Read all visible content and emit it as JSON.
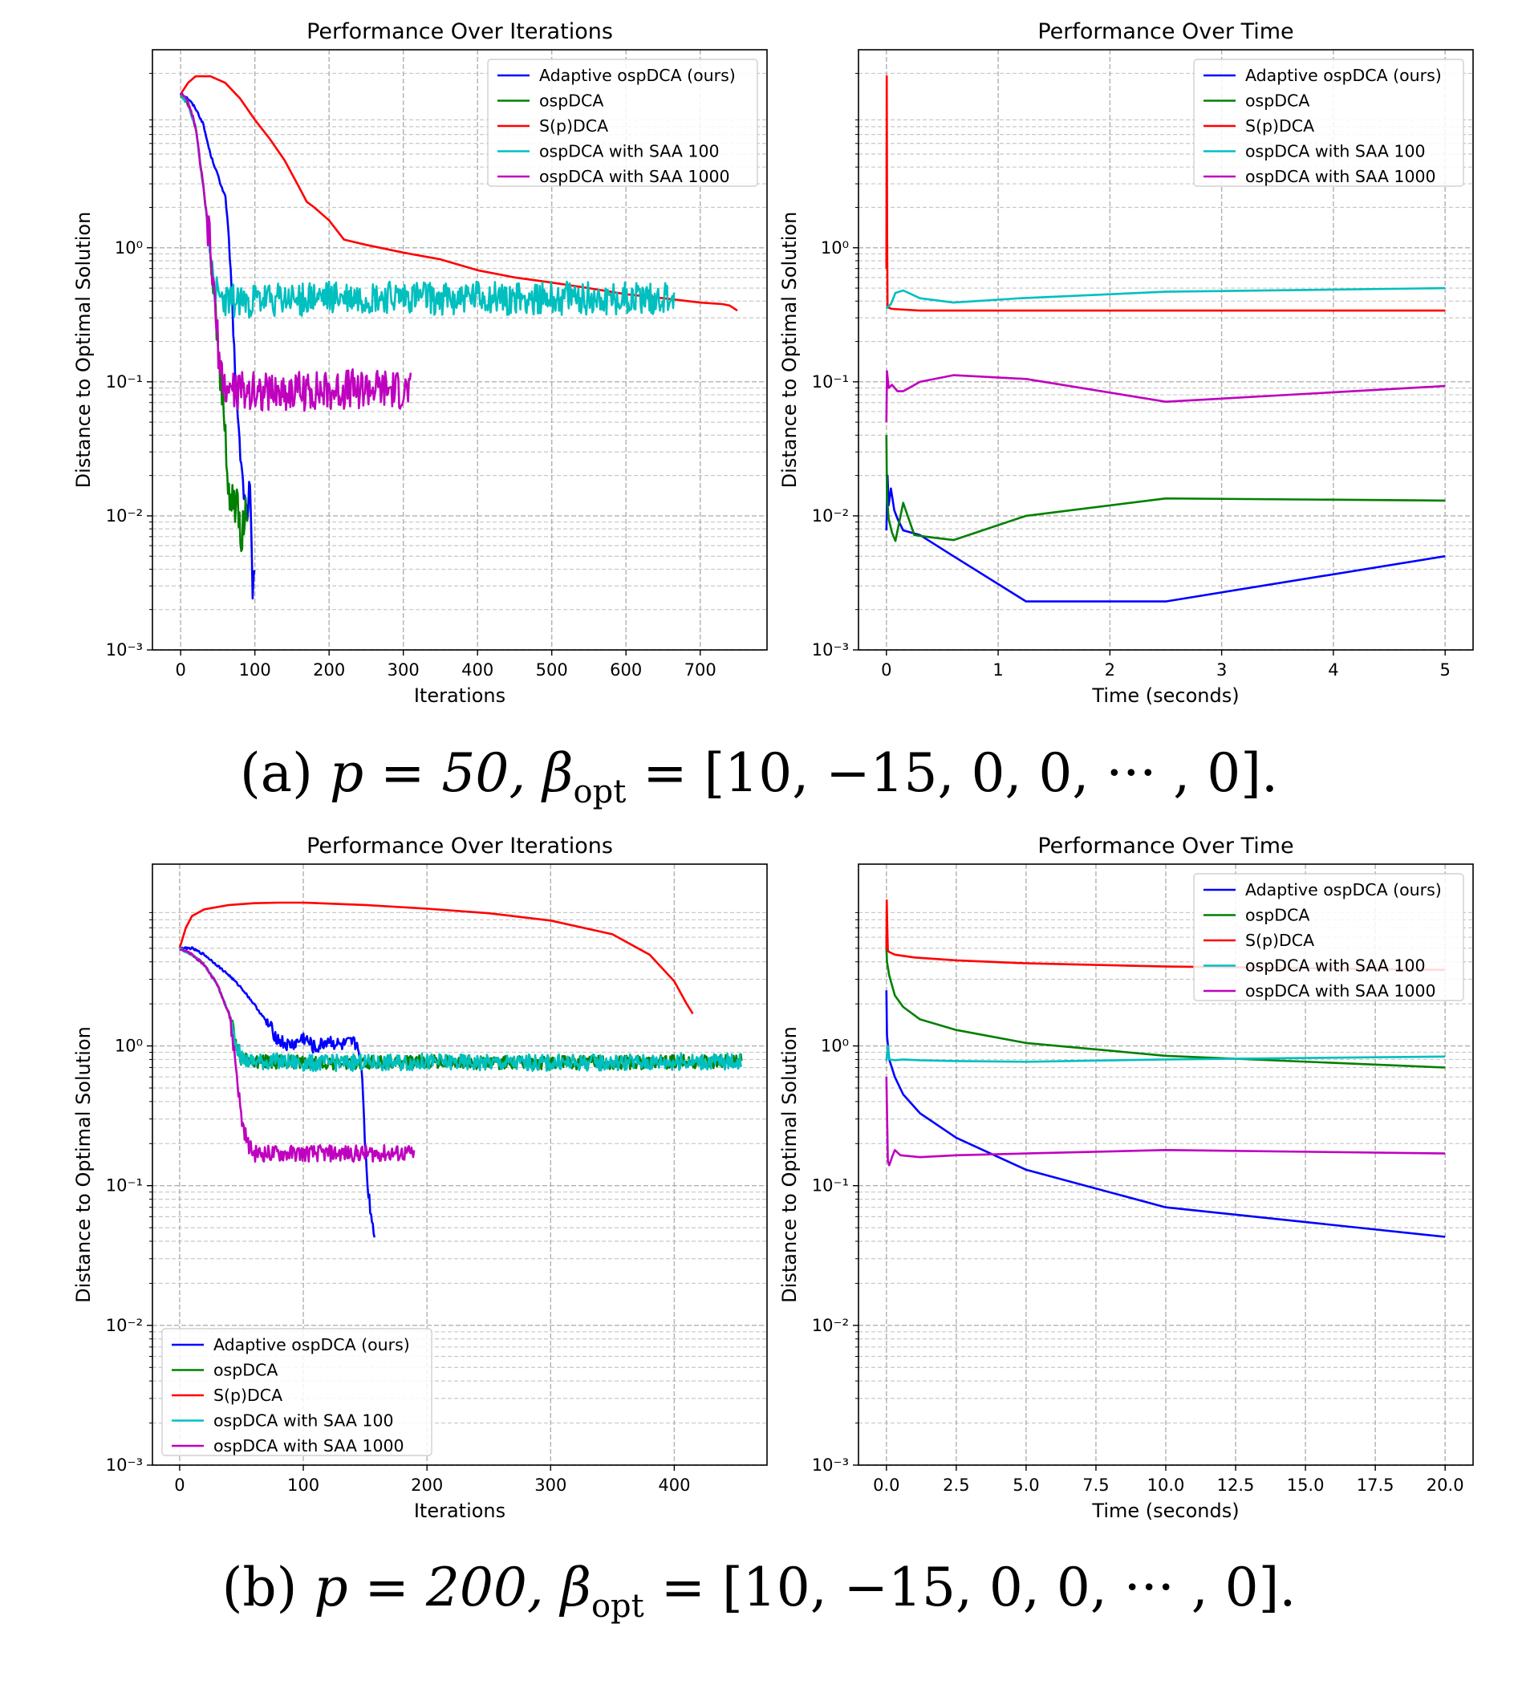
{
  "captions": {
    "a": {
      "label": "(a)",
      "p_eq": "p = 50,",
      "beta": "β",
      "beta_sub": "opt",
      "rest": "= [10, −15, 0, 0, ··· , 0]."
    },
    "b": {
      "label": "(b)",
      "p_eq": "p = 200,",
      "beta": "β",
      "beta_sub": "opt",
      "rest": "= [10, −15, 0, 0, ··· , 0]."
    }
  },
  "series_colors": {
    "Adaptive ospDCA (ours)": "#0000ff",
    "ospDCA": "#008000",
    "S(p)DCA": "#ff0000",
    "ospDCA with SAA 100": "#00bfbf",
    "ospDCA with SAA 1000": "#bf00bf"
  },
  "chart_data": [
    {
      "id": "a_iter",
      "type": "line",
      "title": "Performance Over Iterations",
      "xlabel": "Iterations",
      "ylabel": "Distance to Optimal Solution",
      "yscale": "log",
      "xlim": [
        -38,
        790
      ],
      "ylim": [
        0.001,
        30
      ],
      "xticks": [
        0,
        100,
        200,
        300,
        400,
        500,
        600,
        700
      ],
      "xtick_labels": [
        "0",
        "100",
        "200",
        "300",
        "400",
        "500",
        "600",
        "700"
      ],
      "yticks": [
        0.001,
        0.01,
        0.1,
        1
      ],
      "ytick_labels": [
        "10⁻³",
        "10⁻²",
        "10⁻¹",
        "10⁰"
      ],
      "legend": "top-right",
      "series": [
        {
          "name": "Adaptive ospDCA (ours)",
          "noise": 0.12,
          "x": [
            0,
            10,
            20,
            30,
            40,
            50,
            55,
            60,
            65,
            70,
            75,
            80,
            85,
            90,
            93,
            95,
            97,
            100
          ],
          "y": [
            14,
            13,
            11,
            8.5,
            5,
            3.5,
            2.8,
            2.5,
            1.2,
            0.3,
            0.08,
            0.03,
            0.015,
            0.01,
            0.019,
            0.008,
            0.0023,
            0.005
          ]
        },
        {
          "name": "ospDCA",
          "noise": 0.3,
          "x": [
            0,
            10,
            20,
            30,
            40,
            50,
            55,
            60,
            63,
            67,
            70,
            73,
            76,
            80,
            83,
            86,
            90
          ],
          "y": [
            14,
            12,
            8,
            3,
            1.0,
            0.2,
            0.09,
            0.04,
            0.018,
            0.013,
            0.016,
            0.01,
            0.015,
            0.009,
            0.0065,
            0.012,
            0.01
          ]
        },
        {
          "name": "S(p)DCA",
          "x": [
            0,
            10,
            20,
            40,
            60,
            80,
            100,
            120,
            140,
            160,
            170,
            180,
            200,
            220,
            250,
            300,
            350,
            400,
            450,
            500,
            550,
            600,
            650,
            700,
            730,
            740,
            750
          ],
          "y": [
            14,
            17,
            19,
            19,
            17,
            13,
            9,
            6.5,
            4.5,
            2.8,
            2.2,
            2.0,
            1.6,
            1.15,
            1.05,
            0.92,
            0.82,
            0.68,
            0.6,
            0.55,
            0.5,
            0.45,
            0.42,
            0.39,
            0.38,
            0.37,
            0.34
          ]
        },
        {
          "name": "ospDCA with SAA 100",
          "noise": 0.25,
          "x": [
            0,
            10,
            20,
            30,
            40,
            45,
            50,
            60,
            100,
            200,
            300,
            400,
            500,
            600,
            665
          ],
          "y": [
            14,
            12,
            8,
            3,
            1.0,
            0.55,
            0.42,
            0.4,
            0.4,
            0.42,
            0.42,
            0.42,
            0.42,
            0.42,
            0.42
          ]
        },
        {
          "name": "ospDCA with SAA 1000",
          "noise": 0.3,
          "x": [
            0,
            10,
            20,
            30,
            40,
            50,
            55,
            60,
            100,
            200,
            250,
            310
          ],
          "y": [
            14,
            12,
            8,
            3,
            1.0,
            0.2,
            0.1,
            0.09,
            0.085,
            0.085,
            0.09,
            0.085
          ]
        }
      ]
    },
    {
      "id": "a_time",
      "type": "line",
      "title": "Performance Over Time",
      "xlabel": "Time (seconds)",
      "ylabel": "Distance to Optimal Solution",
      "yscale": "log",
      "xlim": [
        -0.25,
        5.25
      ],
      "ylim": [
        0.001,
        30
      ],
      "xticks": [
        0,
        1,
        2,
        3,
        4,
        5
      ],
      "xtick_labels": [
        "0",
        "1",
        "2",
        "3",
        "4",
        "5"
      ],
      "yticks": [
        0.001,
        0.01,
        0.1,
        1
      ],
      "ytick_labels": [
        "10⁻³",
        "10⁻²",
        "10⁻¹",
        "10⁰"
      ],
      "legend": "top-right",
      "series": [
        {
          "name": "Adaptive ospDCA (ours)",
          "x": [
            0,
            0.01,
            0.02,
            0.04,
            0.07,
            0.1,
            0.15,
            0.3,
            0.6,
            1.25,
            2.5,
            5
          ],
          "y": [
            0.0078,
            0.02,
            0.012,
            0.016,
            0.011,
            0.0095,
            0.0078,
            0.0072,
            0.005,
            0.0023,
            0.0023,
            0.005
          ]
        },
        {
          "name": "ospDCA",
          "x": [
            0,
            0.005,
            0.02,
            0.05,
            0.08,
            0.15,
            0.25,
            0.35,
            0.6,
            1.25,
            2.5,
            5
          ],
          "y": [
            0.04,
            0.014,
            0.0095,
            0.0075,
            0.0065,
            0.0125,
            0.0072,
            0.007,
            0.0066,
            0.01,
            0.0135,
            0.013
          ]
        },
        {
          "name": "S(p)DCA",
          "x": [
            0,
            0.003,
            0.006,
            0.01,
            0.05,
            0.3,
            1,
            2.5,
            5
          ],
          "y": [
            0.7,
            19,
            1.2,
            0.36,
            0.35,
            0.34,
            0.34,
            0.34,
            0.34
          ]
        },
        {
          "name": "ospDCA with SAA 100",
          "x": [
            0,
            0.01,
            0.04,
            0.08,
            0.15,
            0.3,
            0.6,
            1.2,
            2.5,
            5
          ],
          "y": [
            0.35,
            0.36,
            0.38,
            0.46,
            0.48,
            0.42,
            0.39,
            0.42,
            0.47,
            0.5
          ]
        },
        {
          "name": "ospDCA with SAA 1000",
          "x": [
            0,
            0.005,
            0.02,
            0.05,
            0.1,
            0.15,
            0.3,
            0.6,
            1.25,
            2.5,
            5
          ],
          "y": [
            0.05,
            0.12,
            0.09,
            0.095,
            0.085,
            0.085,
            0.1,
            0.112,
            0.105,
            0.071,
            0.093
          ]
        }
      ]
    },
    {
      "id": "b_iter",
      "type": "line",
      "title": "Performance Over Iterations",
      "xlabel": "Iterations",
      "ylabel": "Distance to Optimal Solution",
      "yscale": "log",
      "xlim": [
        -22,
        475
      ],
      "ylim": [
        0.001,
        20
      ],
      "xticks": [
        0,
        100,
        200,
        300,
        400
      ],
      "xtick_labels": [
        "0",
        "100",
        "200",
        "300",
        "400"
      ],
      "yticks": [
        0.001,
        0.01,
        0.1,
        1
      ],
      "ytick_labels": [
        "10⁻³",
        "10⁻²",
        "10⁻¹",
        "10⁰"
      ],
      "legend": "bottom-left",
      "series": [
        {
          "name": "Adaptive ospDCA (ours)",
          "noise": 0.1,
          "x": [
            0,
            10,
            20,
            30,
            40,
            50,
            60,
            70,
            80,
            88,
            95,
            100,
            110,
            120,
            130,
            140,
            145,
            148,
            150,
            152,
            155,
            158
          ],
          "y": [
            5,
            5,
            4.5,
            3.8,
            3.2,
            2.6,
            2.0,
            1.5,
            1.1,
            1.0,
            1.05,
            1.15,
            0.95,
            1.1,
            1.0,
            1.05,
            1.0,
            0.5,
            0.2,
            0.1,
            0.06,
            0.043
          ]
        },
        {
          "name": "ospDCA",
          "noise": 0.1,
          "x": [
            0,
            10,
            20,
            30,
            40,
            45,
            50,
            55,
            60,
            100,
            150,
            200,
            250,
            300,
            350,
            400,
            455
          ],
          "y": [
            5,
            4.5,
            3.8,
            2.8,
            1.7,
            1.1,
            0.8,
            0.78,
            0.78,
            0.76,
            0.76,
            0.77,
            0.76,
            0.76,
            0.76,
            0.77,
            0.78
          ]
        },
        {
          "name": "S(p)DCA",
          "x": [
            0,
            5,
            10,
            20,
            40,
            60,
            80,
            100,
            150,
            200,
            250,
            300,
            350,
            380,
            400,
            410,
            415
          ],
          "y": [
            5,
            7,
            8.5,
            9.5,
            10.2,
            10.5,
            10.6,
            10.6,
            10.2,
            9.6,
            8.9,
            7.9,
            6.3,
            4.5,
            2.9,
            2.0,
            1.7
          ]
        },
        {
          "name": "ospDCA with SAA 100",
          "noise": 0.12,
          "x": [
            0,
            10,
            20,
            30,
            40,
            45,
            50,
            55,
            60,
            100,
            150,
            200,
            250,
            300,
            350,
            400,
            455
          ],
          "y": [
            5,
            4.5,
            3.8,
            2.8,
            1.7,
            1.1,
            0.8,
            0.78,
            0.78,
            0.76,
            0.76,
            0.77,
            0.76,
            0.76,
            0.76,
            0.77,
            0.78
          ]
        },
        {
          "name": "ospDCA with SAA 1000",
          "noise": 0.12,
          "x": [
            0,
            10,
            20,
            30,
            40,
            45,
            50,
            55,
            60,
            100,
            150,
            190
          ],
          "y": [
            5,
            4.5,
            3.8,
            2.8,
            1.7,
            0.8,
            0.3,
            0.2,
            0.17,
            0.17,
            0.17,
            0.17
          ]
        }
      ]
    },
    {
      "id": "b_time",
      "type": "line",
      "title": "Performance Over Time",
      "xlabel": "Time (seconds)",
      "ylabel": "Distance to Optimal Solution",
      "yscale": "log",
      "xlim": [
        -1.0,
        21.0
      ],
      "ylim": [
        0.001,
        20
      ],
      "xticks": [
        0,
        2.5,
        5,
        7.5,
        10,
        12.5,
        15,
        17.5,
        20
      ],
      "xtick_labels": [
        "0.0",
        "2.5",
        "5.0",
        "7.5",
        "10.0",
        "12.5",
        "15.0",
        "17.5",
        "20.0"
      ],
      "yticks": [
        0.001,
        0.01,
        0.1,
        1
      ],
      "ytick_labels": [
        "10⁻³",
        "10⁻²",
        "10⁻¹",
        "10⁰"
      ],
      "legend": "top-right",
      "series": [
        {
          "name": "Adaptive ospDCA (ours)",
          "x": [
            0,
            0.02,
            0.1,
            0.3,
            0.6,
            1.2,
            2.5,
            5,
            10,
            20
          ],
          "y": [
            2.5,
            1.2,
            0.8,
            0.6,
            0.45,
            0.33,
            0.22,
            0.13,
            0.07,
            0.043
          ]
        },
        {
          "name": "ospDCA",
          "x": [
            0,
            0.02,
            0.1,
            0.3,
            0.6,
            1.2,
            2.5,
            5,
            10,
            20
          ],
          "y": [
            5.0,
            4.0,
            3.2,
            2.3,
            1.9,
            1.55,
            1.3,
            1.05,
            0.85,
            0.7
          ]
        },
        {
          "name": "S(p)DCA",
          "x": [
            0,
            0.01,
            0.03,
            0.05,
            0.1,
            0.3,
            1,
            2.5,
            5,
            10,
            20
          ],
          "y": [
            5,
            11,
            7,
            4.8,
            4.7,
            4.5,
            4.3,
            4.1,
            3.9,
            3.7,
            3.5
          ]
        },
        {
          "name": "ospDCA with SAA 100",
          "x": [
            0,
            0.05,
            0.1,
            0.3,
            0.6,
            1.2,
            2.5,
            5,
            10,
            20
          ],
          "y": [
            0.78,
            1.0,
            0.8,
            0.79,
            0.8,
            0.79,
            0.78,
            0.77,
            0.8,
            0.84
          ]
        },
        {
          "name": "ospDCA with SAA 1000",
          "x": [
            0,
            0.05,
            0.1,
            0.2,
            0.3,
            0.5,
            1.2,
            2.5,
            5,
            10,
            20
          ],
          "y": [
            0.6,
            0.15,
            0.14,
            0.16,
            0.18,
            0.165,
            0.16,
            0.165,
            0.17,
            0.18,
            0.17
          ]
        }
      ]
    }
  ]
}
